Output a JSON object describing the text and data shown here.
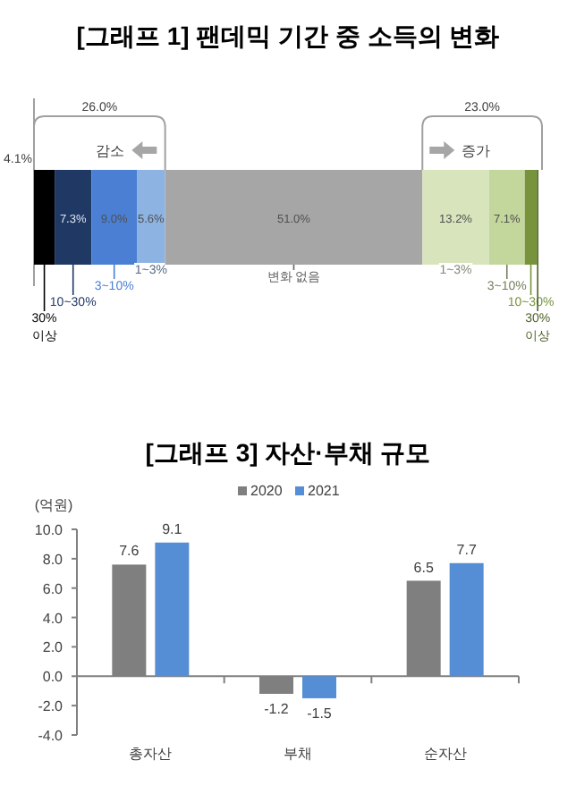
{
  "chart_data": [
    {
      "type": "bar",
      "orientation": "horizontal",
      "stacked": true,
      "title": "[그래프 1] 팬데믹 기간 중 소득의 변화",
      "categories": [
        null
      ],
      "xlim": [
        0,
        100
      ],
      "tick_labels": false,
      "legend": "bottom",
      "annotations": [
        "26.0%",
        "감소",
        "23.0%",
        "증가"
      ],
      "series": [
        {
          "name": "30% 이상",
          "color": "#000000",
          "values": [
            4.1
          ],
          "value_labels": [
            "4.1%"
          ]
        },
        {
          "name": "10~30%",
          "color": "#1f3864",
          "values": [
            7.3
          ],
          "value_labels": [
            "7.3%"
          ]
        },
        {
          "name": "3~10%",
          "color": "#4a7fd4",
          "values": [
            9.0
          ],
          "value_labels": [
            "9.0%"
          ]
        },
        {
          "name": "1~3%",
          "color": "#8db3e2",
          "values": [
            5.6
          ],
          "value_labels": [
            "5.6%"
          ]
        },
        {
          "name": "변화 없음",
          "color": "#a6a6a6",
          "values": [
            51.0
          ],
          "value_labels": [
            "51.0%"
          ]
        },
        {
          "name": "1~3%",
          "color": "#d8e4bc",
          "values": [
            13.2
          ],
          "value_labels": [
            "13.2%"
          ]
        },
        {
          "name": "3~10%",
          "color": "#c3d69b",
          "values": [
            7.1
          ],
          "value_labels": [
            "7.1%"
          ]
        },
        {
          "name": "10~30%",
          "color": "#77933c",
          "values": [
            2.4
          ],
          "value_labels": [
            null
          ]
        },
        {
          "name": "30% 이상",
          "color": "#4f6228",
          "values": [
            0.3
          ],
          "value_labels": [
            null
          ]
        }
      ]
    },
    {
      "type": "bar",
      "title": "[그래프 3] 자산·부채 규모",
      "ylabel": "(억원)",
      "categories": [
        "총자산",
        "부채",
        "순자산"
      ],
      "ylim": [
        -4,
        10
      ],
      "yticks": [
        {
          "value": -4,
          "label": "-4.0"
        },
        {
          "value": -2,
          "label": "-2.0"
        },
        {
          "value": 0,
          "label": "0.0"
        },
        {
          "value": 2,
          "label": "2.0"
        },
        {
          "value": 4,
          "label": "4.0"
        },
        {
          "value": 6,
          "label": "6.0"
        },
        {
          "value": 8,
          "label": "8.0"
        },
        {
          "value": 10,
          "label": "10.0"
        }
      ],
      "data_labels": true,
      "legend": "top",
      "series": [
        {
          "name": "2020",
          "color": "#7f7f7f",
          "values": [
            7.6,
            -1.2,
            6.5
          ]
        },
        {
          "name": "2021",
          "color": "#558ed5",
          "values": [
            9.1,
            -1.5,
            7.7
          ]
        }
      ]
    }
  ]
}
